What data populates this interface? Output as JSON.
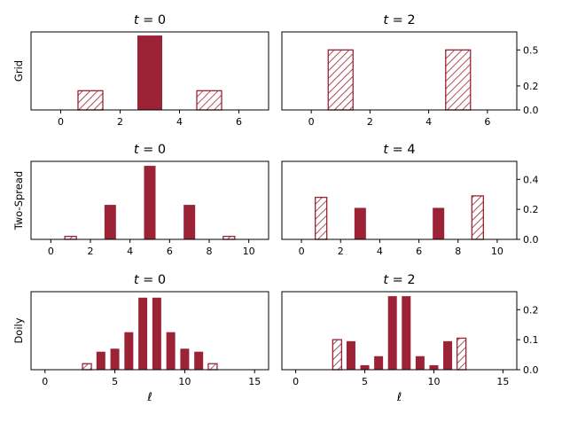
{
  "colors": {
    "bar": "#9b2335",
    "hatch": "#9b2335",
    "axis": "#000000"
  },
  "chart_data": [
    {
      "type": "bar",
      "row_label": "Grid",
      "title": "t = 0",
      "ylim": [
        0,
        0.65
      ],
      "xlim": [
        -1,
        7
      ],
      "xticks": [
        "0",
        "2",
        "4",
        "6"
      ],
      "yticks": [],
      "bars": [
        {
          "x": 1,
          "value": 0.16,
          "hatched": true
        },
        {
          "x": 3,
          "value": 0.62,
          "hatched": false
        },
        {
          "x": 5,
          "value": 0.16,
          "hatched": true
        }
      ]
    },
    {
      "type": "bar",
      "row_label": "",
      "title": "t = 2",
      "ylim": [
        0,
        0.65
      ],
      "xlim": [
        -1,
        7
      ],
      "xticks": [
        "0",
        "2",
        "4",
        "6"
      ],
      "yticks": [
        "0.0",
        "0.2",
        "0.5"
      ],
      "bars": [
        {
          "x": 1,
          "value": 0.5,
          "hatched": true
        },
        {
          "x": 5,
          "value": 0.5,
          "hatched": true
        }
      ]
    },
    {
      "type": "bar",
      "row_label": "Two-Spread",
      "title": "t = 0",
      "ylim": [
        0,
        0.52
      ],
      "xlim": [
        -1,
        11
      ],
      "xticks": [
        "0",
        "2",
        "4",
        "6",
        "8",
        "10"
      ],
      "yticks": [],
      "bars": [
        {
          "x": 1,
          "value": 0.02,
          "hatched": true
        },
        {
          "x": 3,
          "value": 0.23,
          "hatched": false
        },
        {
          "x": 5,
          "value": 0.49,
          "hatched": false
        },
        {
          "x": 7,
          "value": 0.23,
          "hatched": false
        },
        {
          "x": 9,
          "value": 0.02,
          "hatched": true
        }
      ]
    },
    {
      "type": "bar",
      "row_label": "",
      "title": "t = 4",
      "ylim": [
        0,
        0.52
      ],
      "xlim": [
        -1,
        11
      ],
      "xticks": [
        "0",
        "2",
        "4",
        "6",
        "8",
        "10"
      ],
      "yticks": [
        "0.0",
        "0.2",
        "0.4"
      ],
      "bars": [
        {
          "x": 1,
          "value": 0.28,
          "hatched": true
        },
        {
          "x": 3,
          "value": 0.21,
          "hatched": false
        },
        {
          "x": 7,
          "value": 0.21,
          "hatched": false
        },
        {
          "x": 9,
          "value": 0.29,
          "hatched": true
        }
      ]
    },
    {
      "type": "bar",
      "row_label": "Doily",
      "title": "t = 0",
      "xlabel": "ℓ",
      "ylim": [
        0,
        0.26
      ],
      "xlim": [
        -1,
        16
      ],
      "xticks": [
        "0",
        "5",
        "10",
        "15"
      ],
      "yticks": [],
      "bars": [
        {
          "x": 3,
          "value": 0.02,
          "hatched": true
        },
        {
          "x": 4,
          "value": 0.06,
          "hatched": false
        },
        {
          "x": 5,
          "value": 0.07,
          "hatched": false
        },
        {
          "x": 6,
          "value": 0.125,
          "hatched": false
        },
        {
          "x": 7,
          "value": 0.24,
          "hatched": false
        },
        {
          "x": 8,
          "value": 0.24,
          "hatched": false
        },
        {
          "x": 9,
          "value": 0.125,
          "hatched": false
        },
        {
          "x": 10,
          "value": 0.07,
          "hatched": false
        },
        {
          "x": 11,
          "value": 0.06,
          "hatched": false
        },
        {
          "x": 12,
          "value": 0.02,
          "hatched": true
        }
      ]
    },
    {
      "type": "bar",
      "row_label": "",
      "title": "t = 2",
      "xlabel": "ℓ",
      "ylim": [
        0,
        0.26
      ],
      "xlim": [
        -1,
        16
      ],
      "xticks": [
        "0",
        "5",
        "10",
        "15"
      ],
      "yticks": [
        "0.0",
        "0.1",
        "0.2"
      ],
      "bars": [
        {
          "x": 3,
          "value": 0.1,
          "hatched": true
        },
        {
          "x": 4,
          "value": 0.095,
          "hatched": false
        },
        {
          "x": 5,
          "value": 0.015,
          "hatched": false
        },
        {
          "x": 6,
          "value": 0.045,
          "hatched": false
        },
        {
          "x": 7,
          "value": 0.245,
          "hatched": false
        },
        {
          "x": 8,
          "value": 0.245,
          "hatched": false
        },
        {
          "x": 9,
          "value": 0.045,
          "hatched": false
        },
        {
          "x": 10,
          "value": 0.015,
          "hatched": false
        },
        {
          "x": 11,
          "value": 0.095,
          "hatched": false
        },
        {
          "x": 12,
          "value": 0.105,
          "hatched": true
        }
      ]
    }
  ]
}
